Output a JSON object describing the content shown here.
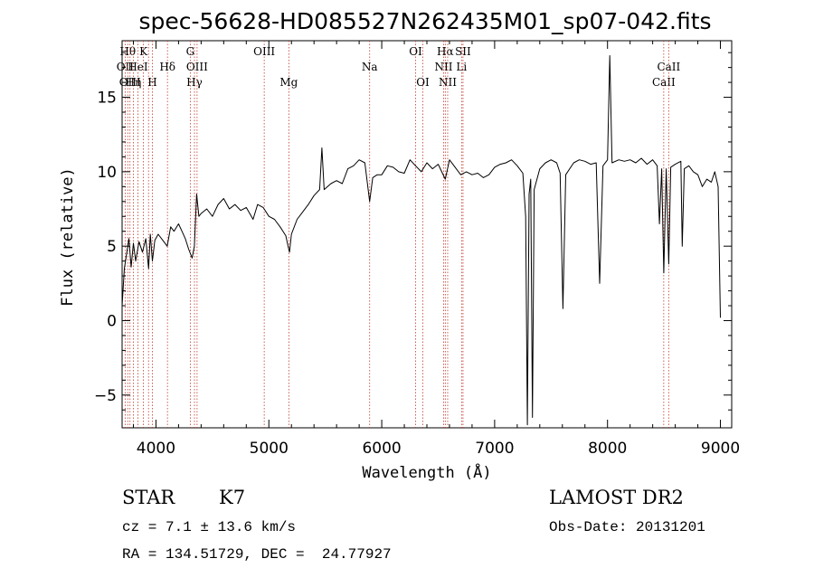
{
  "chart_data": {
    "type": "line",
    "title": "spec-56628-HD085527N262435M01_sp07-042.fits",
    "xlabel": "Wavelength (Å)",
    "ylabel": "Flux (relative)",
    "xlim": [
      3700,
      9100
    ],
    "ylim": [
      -7.2,
      18.8
    ],
    "xticks": [
      4000,
      5000,
      6000,
      7000,
      8000,
      9000
    ],
    "yticks": [
      -5,
      0,
      5,
      10,
      15
    ],
    "grid": false,
    "line_color": "#000000",
    "marker_color": "#c0392b",
    "series": [
      {
        "values": [
          [
            3700,
            1.0
          ],
          [
            3720,
            3.5
          ],
          [
            3740,
            4.5
          ],
          [
            3760,
            5.5
          ],
          [
            3780,
            3.6
          ],
          [
            3800,
            5.2
          ],
          [
            3820,
            4.0
          ],
          [
            3850,
            5.3
          ],
          [
            3880,
            4.6
          ],
          [
            3910,
            5.5
          ],
          [
            3935,
            3.5
          ],
          [
            3950,
            5.8
          ],
          [
            3968,
            4.0
          ],
          [
            3990,
            5.4
          ],
          [
            4020,
            5.8
          ],
          [
            4060,
            5.4
          ],
          [
            4100,
            5.0
          ],
          [
            4130,
            6.3
          ],
          [
            4160,
            6.0
          ],
          [
            4200,
            6.5
          ],
          [
            4230,
            6.0
          ],
          [
            4260,
            5.5
          ],
          [
            4290,
            4.8
          ],
          [
            4320,
            4.2
          ],
          [
            4340,
            5.0
          ],
          [
            4360,
            8.5
          ],
          [
            4380,
            7.0
          ],
          [
            4400,
            7.2
          ],
          [
            4450,
            7.5
          ],
          [
            4500,
            7.0
          ],
          [
            4550,
            7.8
          ],
          [
            4600,
            8.2
          ],
          [
            4650,
            7.5
          ],
          [
            4700,
            7.8
          ],
          [
            4750,
            7.4
          ],
          [
            4800,
            7.6
          ],
          [
            4860,
            6.8
          ],
          [
            4900,
            7.8
          ],
          [
            4950,
            7.6
          ],
          [
            5000,
            7.0
          ],
          [
            5050,
            6.8
          ],
          [
            5100,
            6.3
          ],
          [
            5150,
            5.7
          ],
          [
            5170,
            5.0
          ],
          [
            5183,
            4.6
          ],
          [
            5200,
            5.8
          ],
          [
            5250,
            6.8
          ],
          [
            5300,
            7.3
          ],
          [
            5350,
            7.8
          ],
          [
            5400,
            8.4
          ],
          [
            5450,
            8.8
          ],
          [
            5470,
            11.6
          ],
          [
            5490,
            8.8
          ],
          [
            5550,
            9.2
          ],
          [
            5600,
            9.4
          ],
          [
            5650,
            9.2
          ],
          [
            5700,
            10.2
          ],
          [
            5750,
            10.4
          ],
          [
            5800,
            10.8
          ],
          [
            5850,
            10.6
          ],
          [
            5893,
            8.0
          ],
          [
            5920,
            9.6
          ],
          [
            5960,
            9.8
          ],
          [
            6000,
            9.8
          ],
          [
            6050,
            10.4
          ],
          [
            6100,
            10.3
          ],
          [
            6150,
            10.0
          ],
          [
            6200,
            9.9
          ],
          [
            6250,
            10.8
          ],
          [
            6300,
            10.4
          ],
          [
            6350,
            10.0
          ],
          [
            6400,
            10.6
          ],
          [
            6450,
            10.2
          ],
          [
            6500,
            10.5
          ],
          [
            6563,
            9.5
          ],
          [
            6600,
            10.8
          ],
          [
            6650,
            10.3
          ],
          [
            6700,
            9.8
          ],
          [
            6750,
            10.0
          ],
          [
            6800,
            9.8
          ],
          [
            6850,
            9.9
          ],
          [
            6900,
            9.6
          ],
          [
            6950,
            9.8
          ],
          [
            7000,
            10.3
          ],
          [
            7050,
            10.5
          ],
          [
            7100,
            10.6
          ],
          [
            7150,
            10.8
          ],
          [
            7200,
            10.4
          ],
          [
            7250,
            9.9
          ],
          [
            7275,
            7.0
          ],
          [
            7290,
            -7.0
          ],
          [
            7305,
            8.5
          ],
          [
            7320,
            9.5
          ],
          [
            7335,
            -6.5
          ],
          [
            7350,
            8.8
          ],
          [
            7400,
            10.2
          ],
          [
            7450,
            10.6
          ],
          [
            7500,
            10.8
          ],
          [
            7550,
            10.6
          ],
          [
            7580,
            9.9
          ],
          [
            7605,
            0.8
          ],
          [
            7630,
            9.8
          ],
          [
            7700,
            10.6
          ],
          [
            7750,
            10.8
          ],
          [
            7800,
            10.7
          ],
          [
            7850,
            10.5
          ],
          [
            7900,
            10.6
          ],
          [
            7930,
            2.5
          ],
          [
            7960,
            10.4
          ],
          [
            8000,
            10.8
          ],
          [
            8020,
            17.8
          ],
          [
            8040,
            10.6
          ],
          [
            8100,
            10.8
          ],
          [
            8150,
            10.7
          ],
          [
            8200,
            10.8
          ],
          [
            8250,
            10.6
          ],
          [
            8300,
            10.9
          ],
          [
            8350,
            10.5
          ],
          [
            8400,
            10.8
          ],
          [
            8440,
            10.4
          ],
          [
            8460,
            6.5
          ],
          [
            8480,
            10.2
          ],
          [
            8498,
            3.2
          ],
          [
            8520,
            10.2
          ],
          [
            8542,
            3.8
          ],
          [
            8560,
            10.3
          ],
          [
            8600,
            10.5
          ],
          [
            8650,
            10.7
          ],
          [
            8662,
            5.0
          ],
          [
            8680,
            10.2
          ],
          [
            8720,
            10.4
          ],
          [
            8760,
            10.0
          ],
          [
            8800,
            9.8
          ],
          [
            8840,
            9.0
          ],
          [
            8880,
            9.5
          ],
          [
            8920,
            9.3
          ],
          [
            8950,
            10.0
          ],
          [
            8980,
            9.0
          ],
          [
            9000,
            0.2
          ]
        ]
      }
    ],
    "line_markers": [
      {
        "wave": 3727,
        "label": "OII",
        "row": 1
      },
      {
        "wave": 3750,
        "label": "Hθ",
        "row": 0
      },
      {
        "wave": 3770,
        "label": "OIII",
        "row": 2
      },
      {
        "wave": 3800,
        "label": "Hη",
        "row": 2
      },
      {
        "wave": 3840,
        "label": "HeI",
        "row": 1
      },
      {
        "wave": 3889,
        "label": "K",
        "row": 0
      },
      {
        "wave": 3934,
        "label": "",
        "row": 0
      },
      {
        "wave": 3968,
        "label": "H",
        "row": 2
      },
      {
        "wave": 4102,
        "label": "Hδ",
        "row": 1
      },
      {
        "wave": 4304,
        "label": "G",
        "row": 0
      },
      {
        "wave": 4341,
        "label": "Hγ",
        "row": 2
      },
      {
        "wave": 4364,
        "label": "OIII",
        "row": 1
      },
      {
        "wave": 4959,
        "label": "OIII",
        "row": 0
      },
      {
        "wave": 5177,
        "label": "Mg",
        "row": 2
      },
      {
        "wave": 5893,
        "label": "Na",
        "row": 1
      },
      {
        "wave": 6300,
        "label": "OI",
        "row": 0
      },
      {
        "wave": 6364,
        "label": "OI",
        "row": 2
      },
      {
        "wave": 6548,
        "label": "NII",
        "row": 1
      },
      {
        "wave": 6563,
        "label": "Hα",
        "row": 0
      },
      {
        "wave": 6584,
        "label": "NII",
        "row": 2
      },
      {
        "wave": 6707,
        "label": "Li",
        "row": 1
      },
      {
        "wave": 6720,
        "label": "SII",
        "row": 0
      },
      {
        "wave": 8498,
        "label": "CaII",
        "row": 2
      },
      {
        "wave": 8542,
        "label": "CaII",
        "row": 1
      }
    ]
  },
  "info": {
    "class": "STAR",
    "subclass": "K7",
    "survey": "LAMOST DR2",
    "cz": "cz = 7.1 ± 13.6 km/s",
    "obs_date": "Obs-Date: 20131201",
    "coords": "RA = 134.51729, DEC =  24.77927"
  }
}
